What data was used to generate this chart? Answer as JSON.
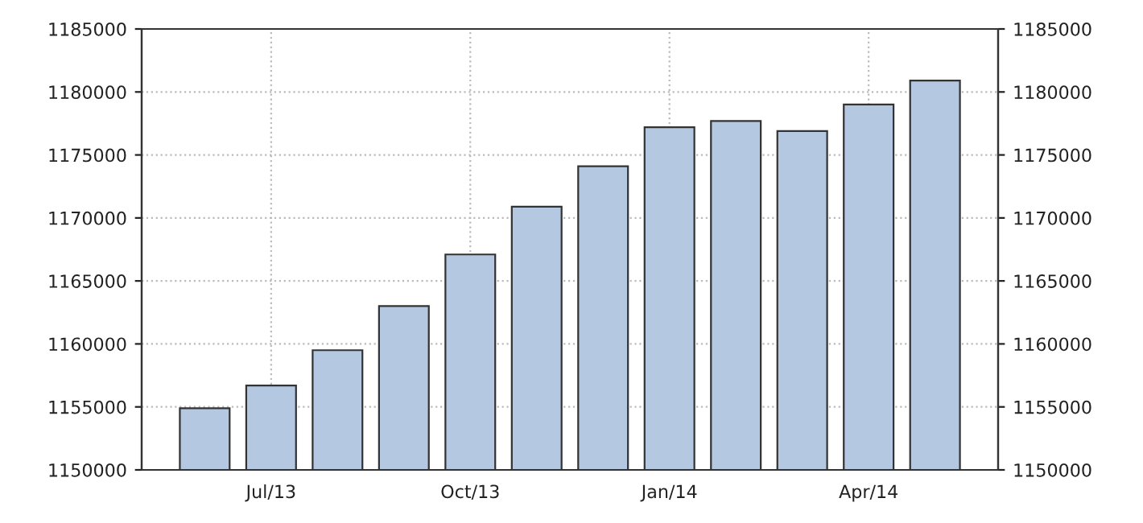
{
  "chart_data": {
    "type": "bar",
    "categories": [
      null,
      "Jul/13",
      null,
      null,
      "Oct/13",
      null,
      null,
      "Jan/14",
      null,
      null,
      "Apr/14",
      null
    ],
    "values": [
      1154900,
      1156700,
      1159500,
      1163000,
      1167100,
      1170900,
      1174100,
      1177200,
      1177700,
      1176900,
      1179000,
      1180900
    ],
    "color": "#b4c8e2",
    "ylim": [
      1150000,
      1185000
    ],
    "yticks": [
      1150000,
      1155000,
      1160000,
      1165000,
      1170000,
      1175000,
      1180000,
      1185000
    ],
    "y2lim": [
      1150000,
      1185000
    ],
    "y2ticks": [
      1150000,
      1155000,
      1160000,
      1165000,
      1170000,
      1175000,
      1180000,
      1185000
    ],
    "grid": true
  }
}
